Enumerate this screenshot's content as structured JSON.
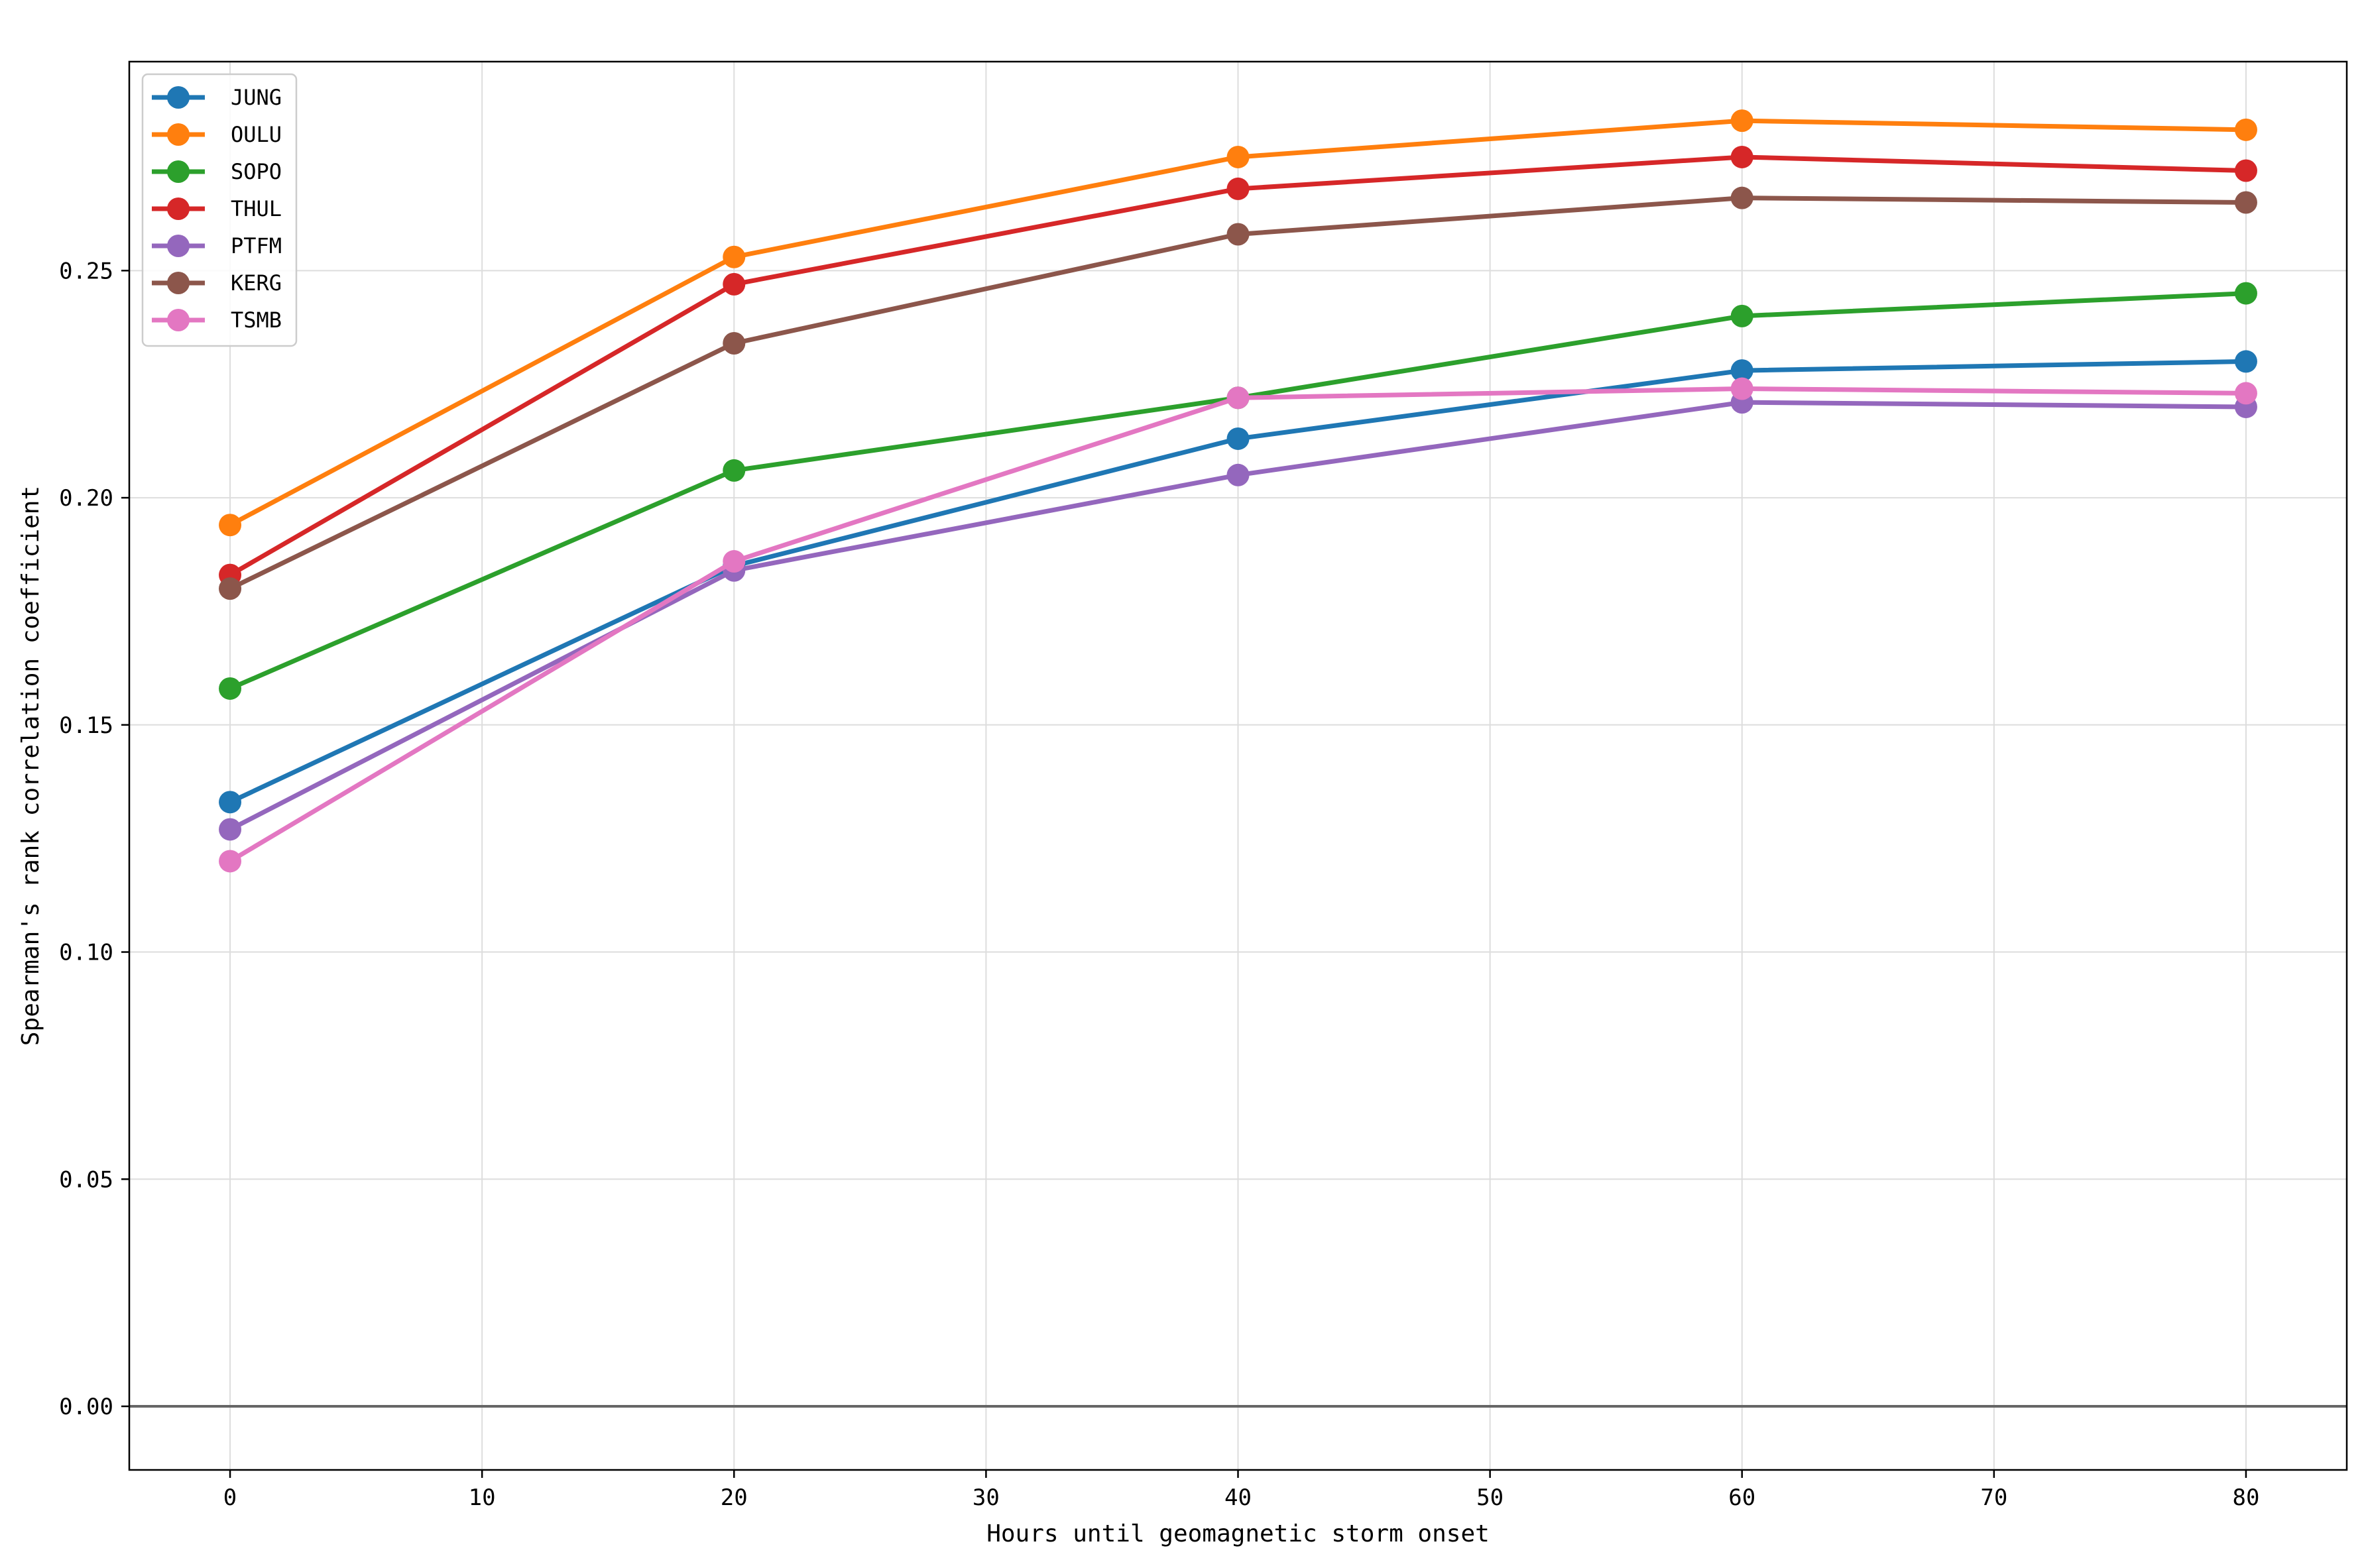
{
  "chart_data": {
    "type": "line",
    "xlabel": "Hours until geomagnetic storm onset",
    "ylabel": "Spearman's rank correlation coefficient",
    "x": [
      0,
      20,
      40,
      60,
      80
    ],
    "xlim": [
      -4,
      84
    ],
    "ylim": [
      -0.014,
      0.296
    ],
    "xticks": [
      0,
      10,
      20,
      30,
      40,
      50,
      60,
      70,
      80
    ],
    "yticks": [
      0.0,
      0.05,
      0.1,
      0.15,
      0.2,
      0.25
    ],
    "xtick_labels": [
      "0",
      "10",
      "20",
      "30",
      "40",
      "50",
      "60",
      "70",
      "80"
    ],
    "ytick_labels": [
      "0.00",
      "0.05",
      "0.10",
      "0.15",
      "0.20",
      "0.25"
    ],
    "grid": true,
    "reference_line_y": 0.0,
    "legend_position": "upper left",
    "series": [
      {
        "name": "JUNG",
        "color": "#1f77b4",
        "values": [
          0.133,
          0.185,
          0.213,
          0.228,
          0.23
        ]
      },
      {
        "name": "OULU",
        "color": "#ff7f0e",
        "values": [
          0.194,
          0.253,
          0.275,
          0.283,
          0.281
        ]
      },
      {
        "name": "SOPO",
        "color": "#2ca02c",
        "values": [
          0.158,
          0.206,
          0.222,
          0.24,
          0.245
        ]
      },
      {
        "name": "THUL",
        "color": "#d62728",
        "values": [
          0.183,
          0.247,
          0.268,
          0.275,
          0.272
        ]
      },
      {
        "name": "PTFM",
        "color": "#9467bd",
        "values": [
          0.127,
          0.184,
          0.205,
          0.221,
          0.22
        ]
      },
      {
        "name": "KERG",
        "color": "#8c564b",
        "values": [
          0.18,
          0.234,
          0.258,
          0.266,
          0.265
        ]
      },
      {
        "name": "TSMB",
        "color": "#e377c2",
        "values": [
          0.12,
          0.186,
          0.222,
          0.224,
          0.223
        ]
      }
    ]
  }
}
